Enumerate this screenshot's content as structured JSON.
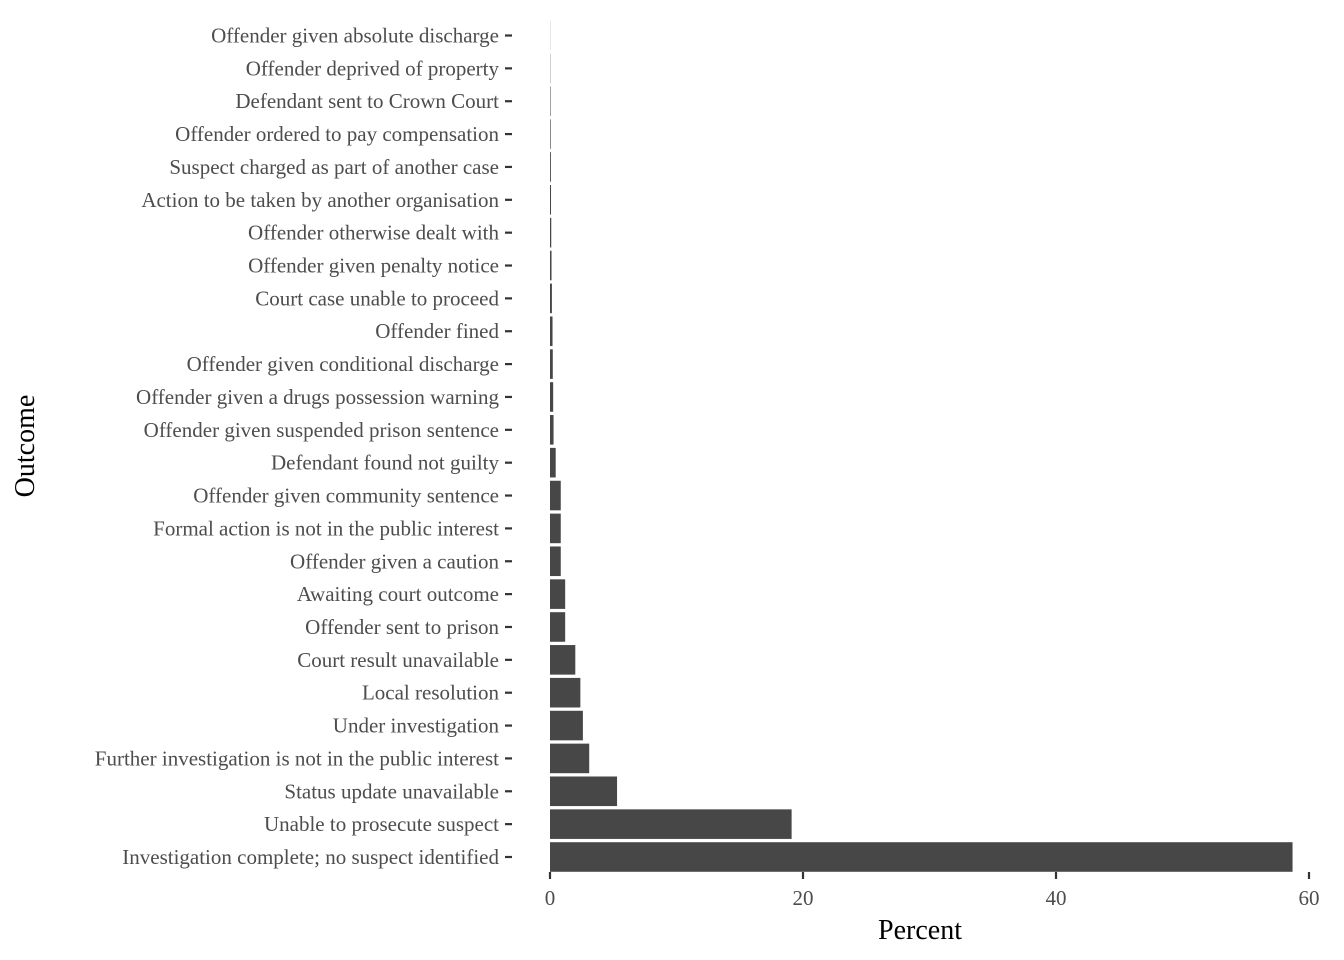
{
  "chart_data": {
    "type": "bar",
    "orientation": "horizontal",
    "xlabel": "Percent",
    "ylabel": "Outcome",
    "xlim": [
      0,
      60
    ],
    "x_ticks": [
      0,
      20,
      40,
      60
    ],
    "grid": false,
    "bar_color": "#474747",
    "categories": [
      "Offender given absolute discharge",
      "Offender deprived of property",
      "Defendant sent to Crown Court",
      "Offender ordered to pay compensation",
      "Suspect charged as part of another case",
      "Action to be taken by another organisation",
      "Offender otherwise dealt with",
      "Offender given penalty notice",
      "Court case unable to proceed",
      "Offender fined",
      "Offender given conditional discharge",
      "Offender given a drugs possession warning",
      "Offender given suspended prison sentence",
      "Defendant found not guilty",
      "Offender given community sentence",
      "Formal action is not in the public interest",
      "Offender given a caution",
      "Awaiting court outcome",
      "Offender sent to prison",
      "Court result unavailable",
      "Local resolution",
      "Under investigation",
      "Further investigation is not in the public interest",
      "Status update unavailable",
      "Unable to prosecute suspect",
      "Investigation complete; no suspect identified"
    ],
    "values": [
      0.01,
      0.02,
      0.04,
      0.05,
      0.07,
      0.08,
      0.1,
      0.12,
      0.15,
      0.2,
      0.22,
      0.25,
      0.28,
      0.45,
      0.85,
      0.85,
      0.85,
      1.2,
      1.2,
      2.0,
      2.4,
      2.6,
      3.1,
      5.3,
      19.1,
      58.7
    ]
  }
}
